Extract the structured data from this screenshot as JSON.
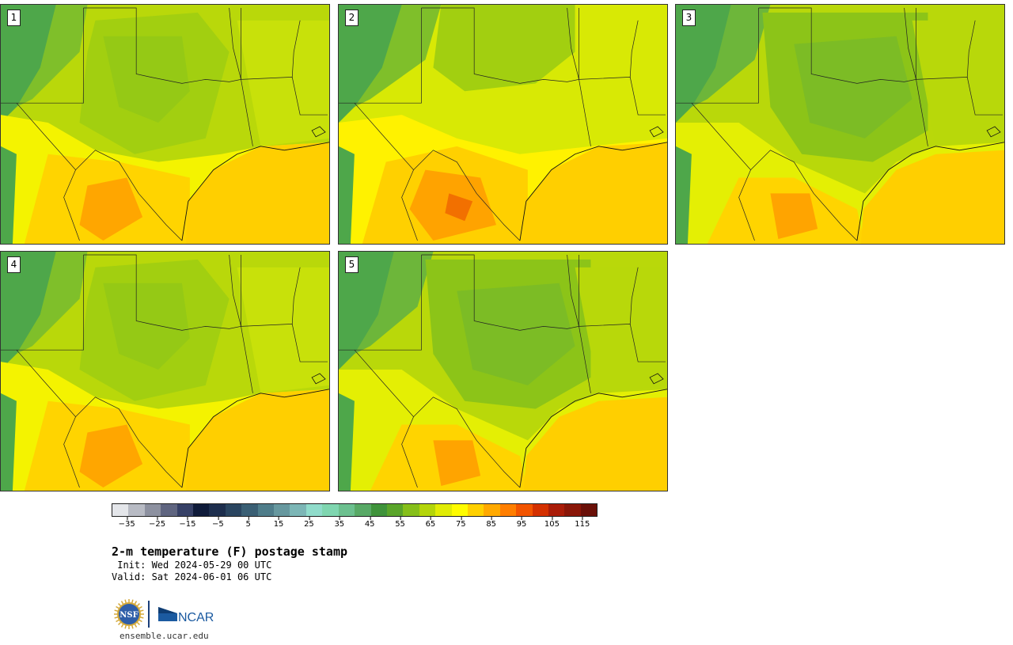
{
  "panels": [
    {
      "label": "1"
    },
    {
      "label": "2"
    },
    {
      "label": "3"
    },
    {
      "label": "4"
    },
    {
      "label": "5"
    }
  ],
  "legend": {
    "colors": [
      "#e4e6ea",
      "#b8bbc4",
      "#8d91a0",
      "#5f6580",
      "#364066",
      "#0f1b3a",
      "#1d2e4d",
      "#2a4560",
      "#3a5f74",
      "#4f7d8a",
      "#67989f",
      "#7cb6b6",
      "#90dccb",
      "#7fd6b0",
      "#6cc08f",
      "#58a966",
      "#3f933b",
      "#5aa52a",
      "#86bf1a",
      "#b4d50a",
      "#e1ec05",
      "#fffc00",
      "#ffd000",
      "#ffa900",
      "#ff7e00",
      "#f25400",
      "#d43000",
      "#aa1c08",
      "#8a1608",
      "#6a1008"
    ],
    "tick_labels": [
      "−35",
      "−25",
      "−15",
      "−5",
      "5",
      "15",
      "25",
      "35",
      "45",
      "55",
      "65",
      "75",
      "85",
      "95",
      "105",
      "115"
    ],
    "range": [
      -40,
      120
    ]
  },
  "title": "2-m temperature (F) postage stamp",
  "init": " Init: Wed 2024-05-29 00 UTC",
  "valid": "Valid: Sat 2024-06-01 06 UTC",
  "logos": {
    "nsf": "NSF",
    "ncar": "NCAR"
  },
  "site": "ensemble.ucar.edu"
}
